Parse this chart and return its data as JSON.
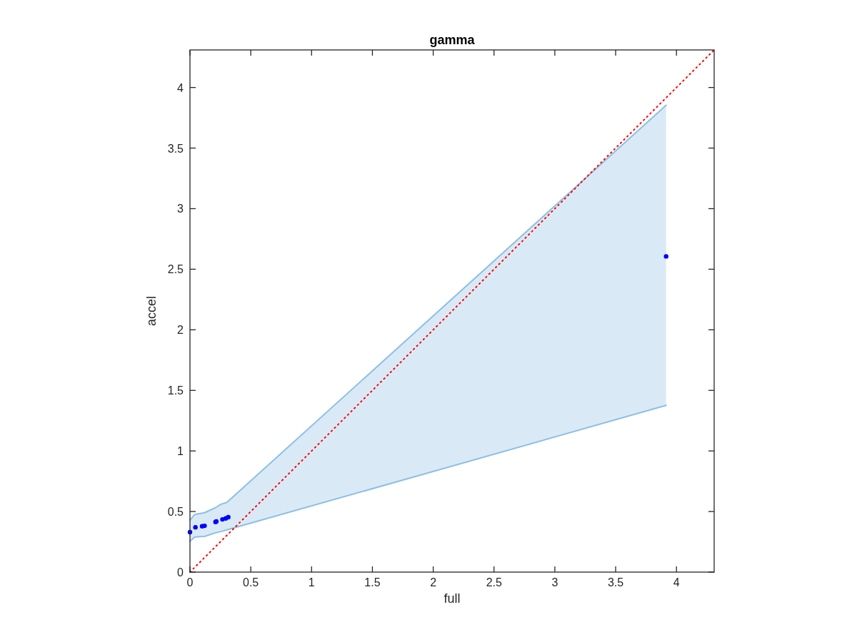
{
  "chart_data": {
    "type": "scatter",
    "title": "gamma",
    "xlabel": "full",
    "ylabel": "accel",
    "xlim": [
      0,
      4.31
    ],
    "ylim": [
      0,
      4.31
    ],
    "xticks": [
      0,
      0.5,
      1,
      1.5,
      2,
      2.5,
      3,
      3.5,
      4
    ],
    "yticks": [
      0,
      0.5,
      1,
      1.5,
      2,
      2.5,
      3,
      3.5,
      4
    ],
    "grid": false,
    "series": [
      {
        "type": "area",
        "color": "#8dbfe3",
        "x": [
          0,
          0.04,
          0.12,
          0.206,
          0.255,
          0.3,
          0.32,
          3.915
        ],
        "values": [
          null,
          null,
          null,
          null,
          null,
          null,
          null,
          null
        ],
        "lower": [
          0.254,
          0.29,
          0.294,
          0.323,
          0.335,
          0.347,
          0.353,
          1.376
        ],
        "upper": [
          0.43,
          0.476,
          0.49,
          0.53,
          0.56,
          0.574,
          0.59,
          3.853
        ]
      },
      {
        "type": "line",
        "color": "#8dbfe3",
        "marker": "none",
        "x": [
          0,
          0.04,
          0.12,
          0.206,
          0.255,
          0.3,
          0.32,
          3.915
        ],
        "values": [
          0.43,
          0.476,
          0.49,
          0.53,
          0.56,
          0.574,
          0.59,
          3.853
        ]
      },
      {
        "type": "line",
        "color": "#8dbfe3",
        "marker": "none",
        "x": [
          0,
          0.04,
          0.12,
          0.206,
          0.255,
          0.3,
          0.32,
          3.915
        ],
        "values": [
          0.254,
          0.29,
          0.294,
          0.323,
          0.335,
          0.347,
          0.353,
          1.376
        ]
      },
      {
        "type": "line",
        "color": "#ff0000",
        "line_style": "dotted",
        "marker": "none",
        "x": [
          0,
          4.31
        ],
        "values": [
          0,
          4.31
        ]
      },
      {
        "color": "#0000ff",
        "marker": "circle",
        "x": [
          0,
          0.045,
          0.1,
          0.12,
          0.21,
          0.217,
          0.267,
          0.294,
          0.315,
          3.915
        ],
        "values": [
          0.33,
          0.37,
          0.378,
          0.382,
          0.414,
          0.418,
          0.435,
          0.443,
          0.453,
          2.606
        ]
      }
    ]
  }
}
